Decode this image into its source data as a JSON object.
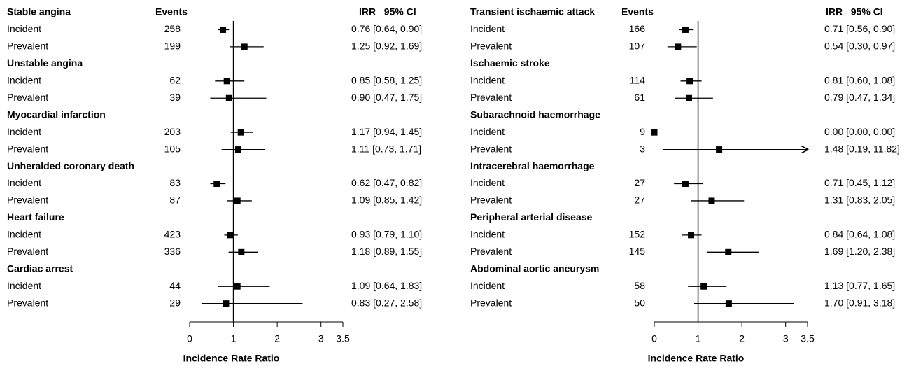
{
  "chart_data": [
    {
      "type": "forest",
      "events_header": "Events",
      "ci_header": "IRR   95% CI",
      "xlabel": "Incidence Rate Ratio",
      "xlim": [
        0,
        3.5
      ],
      "xticks": [
        0,
        1,
        2,
        3,
        3.5
      ],
      "reference": 1,
      "groups": [
        {
          "name": "Stable angina",
          "rows": [
            {
              "label": "Incident",
              "events": 258,
              "irr": 0.76,
              "lo": 0.64,
              "hi": 0.9,
              "value_label": "0.76 [0.64, 0.90]"
            },
            {
              "label": "Prevalent",
              "events": 199,
              "irr": 1.25,
              "lo": 0.92,
              "hi": 1.69,
              "value_label": "1.25 [0.92, 1.69]"
            }
          ]
        },
        {
          "name": "Unstable angina",
          "rows": [
            {
              "label": "Incident",
              "events": 62,
              "irr": 0.85,
              "lo": 0.58,
              "hi": 1.25,
              "value_label": "0.85 [0.58, 1.25]"
            },
            {
              "label": "Prevalent",
              "events": 39,
              "irr": 0.9,
              "lo": 0.47,
              "hi": 1.75,
              "value_label": "0.90 [0.47, 1.75]"
            }
          ]
        },
        {
          "name": "Myocardial infarction",
          "rows": [
            {
              "label": "Incident",
              "events": 203,
              "irr": 1.17,
              "lo": 0.94,
              "hi": 1.45,
              "value_label": "1.17 [0.94, 1.45]"
            },
            {
              "label": "Prevalent",
              "events": 105,
              "irr": 1.11,
              "lo": 0.73,
              "hi": 1.71,
              "value_label": "1.11 [0.73, 1.71]"
            }
          ]
        },
        {
          "name": "Unheralded coronary death",
          "rows": [
            {
              "label": "Incident",
              "events": 83,
              "irr": 0.62,
              "lo": 0.47,
              "hi": 0.82,
              "value_label": "0.62 [0.47, 0.82]"
            },
            {
              "label": "Prevalent",
              "events": 87,
              "irr": 1.09,
              "lo": 0.85,
              "hi": 1.42,
              "value_label": "1.09 [0.85, 1.42]"
            }
          ]
        },
        {
          "name": "Heart failure",
          "rows": [
            {
              "label": "Incident",
              "events": 423,
              "irr": 0.93,
              "lo": 0.79,
              "hi": 1.1,
              "value_label": "0.93 [0.79, 1.10]"
            },
            {
              "label": "Prevalent",
              "events": 336,
              "irr": 1.18,
              "lo": 0.89,
              "hi": 1.55,
              "value_label": "1.18 [0.89, 1.55]"
            }
          ]
        },
        {
          "name": "Cardiac arrest",
          "rows": [
            {
              "label": "Incident",
              "events": 44,
              "irr": 1.09,
              "lo": 0.64,
              "hi": 1.83,
              "value_label": "1.09 [0.64, 1.83]"
            },
            {
              "label": "Prevalent",
              "events": 29,
              "irr": 0.83,
              "lo": 0.27,
              "hi": 2.58,
              "value_label": "0.83 [0.27, 2.58]"
            }
          ]
        }
      ]
    },
    {
      "type": "forest",
      "events_header": "Events",
      "ci_header": "IRR   95% CI",
      "xlabel": "Incidence Rate Ratio",
      "xlim": [
        0,
        3.5
      ],
      "xticks": [
        0,
        1,
        2,
        3,
        3.5
      ],
      "reference": 1,
      "groups": [
        {
          "name": "Transient ischaemic attack",
          "rows": [
            {
              "label": "Incident",
              "events": 166,
              "irr": 0.71,
              "lo": 0.56,
              "hi": 0.9,
              "value_label": "0.71 [0.56, 0.90]"
            },
            {
              "label": "Prevalent",
              "events": 107,
              "irr": 0.54,
              "lo": 0.3,
              "hi": 0.97,
              "value_label": "0.54 [0.30, 0.97]"
            }
          ]
        },
        {
          "name": "Ischaemic stroke",
          "rows": [
            {
              "label": "Incident",
              "events": 114,
              "irr": 0.81,
              "lo": 0.6,
              "hi": 1.08,
              "value_label": "0.81 [0.60, 1.08]"
            },
            {
              "label": "Prevalent",
              "events": 61,
              "irr": 0.79,
              "lo": 0.47,
              "hi": 1.34,
              "value_label": "0.79 [0.47, 1.34]"
            }
          ]
        },
        {
          "name": "Subarachnoid haemorrhage",
          "rows": [
            {
              "label": "Incident",
              "events": 9,
              "irr": 0,
              "lo": 0,
              "hi": 0,
              "value_label": "0.00 [0.00, 0.00]"
            },
            {
              "label": "Prevalent",
              "events": 3,
              "irr": 1.48,
              "lo": 0.19,
              "hi": 11.82,
              "value_label": "1.48 [0.19, 11.82]"
            }
          ]
        },
        {
          "name": "Intracerebral haemorrhage",
          "rows": [
            {
              "label": "Incident",
              "events": 27,
              "irr": 0.71,
              "lo": 0.45,
              "hi": 1.12,
              "value_label": "0.71 [0.45, 1.12]"
            },
            {
              "label": "Prevalent",
              "events": 27,
              "irr": 1.31,
              "lo": 0.83,
              "hi": 2.05,
              "value_label": "1.31 [0.83, 2.05]"
            }
          ]
        },
        {
          "name": "Peripheral arterial disease",
          "rows": [
            {
              "label": "Incident",
              "events": 152,
              "irr": 0.84,
              "lo": 0.64,
              "hi": 1.08,
              "value_label": "0.84 [0.64, 1.08]"
            },
            {
              "label": "Prevalent",
              "events": 145,
              "irr": 1.69,
              "lo": 1.2,
              "hi": 2.38,
              "value_label": "1.69 [1.20, 2.38]"
            }
          ]
        },
        {
          "name": "Abdominal aortic aneurysm",
          "rows": [
            {
              "label": "Incident",
              "events": 58,
              "irr": 1.13,
              "lo": 0.77,
              "hi": 1.65,
              "value_label": "1.13 [0.77, 1.65]"
            },
            {
              "label": "Prevalent",
              "events": 50,
              "irr": 1.7,
              "lo": 0.91,
              "hi": 3.18,
              "value_label": "1.70 [0.91, 3.18]"
            }
          ]
        }
      ]
    }
  ]
}
